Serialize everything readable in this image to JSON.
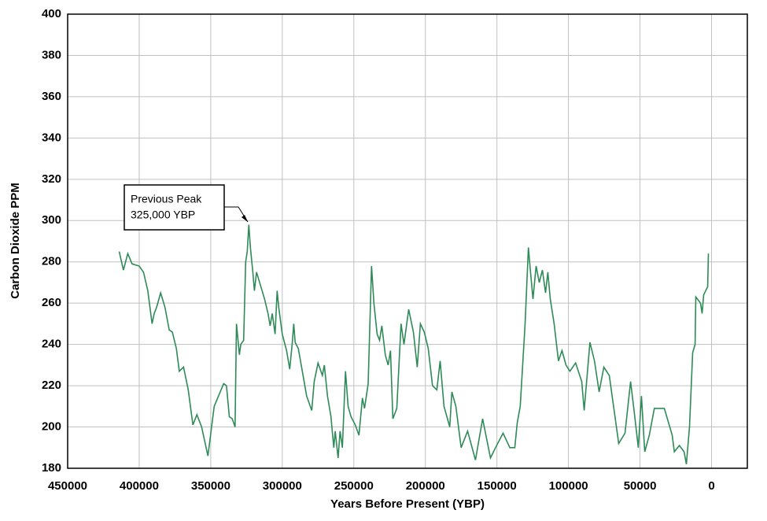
{
  "chart_data": {
    "type": "line",
    "x_label": "Years Before Present (YBP)",
    "y_label": "Carbon Dioxide PPM",
    "annotation": [
      "Previous Peak",
      "325,000 YBP"
    ],
    "xlim": [
      450000,
      -25000
    ],
    "xticks": [
      450000,
      400000,
      350000,
      300000,
      250000,
      200000,
      150000,
      100000,
      50000,
      0
    ],
    "ylim": [
      180,
      400
    ],
    "yticks": [
      180,
      200,
      220,
      240,
      260,
      280,
      300,
      320,
      340,
      360,
      380,
      400
    ],
    "grid": true,
    "series": [
      {
        "name": "CO2",
        "color": "#2e8b57",
        "x": [
          414000,
          411000,
          408000,
          405000,
          400000,
          397000,
          394000,
          391000,
          389500,
          387800,
          385000,
          382000,
          379000,
          376800,
          374000,
          372000,
          369000,
          365700,
          362500,
          359700,
          356400,
          352000,
          347600,
          341000,
          339000,
          337000,
          335000,
          333000,
          332000,
          330000,
          329000,
          327000,
          325600,
          324500,
          323400,
          322300,
          320600,
          319500,
          318000,
          315000,
          312400,
          310000,
          308500,
          307000,
          305000,
          303600,
          302500,
          300000,
          297000,
          294800,
          293000,
          292000,
          291000,
          288800,
          286000,
          283000,
          279400,
          277700,
          275000,
          272000,
          270600,
          268400,
          266000,
          264000,
          263000,
          261000,
          259600,
          258000,
          255800,
          254000,
          252000,
          249000,
          246400,
          244000,
          242500,
          240000,
          237600,
          236000,
          233700,
          232000,
          230400,
          228000,
          226000,
          224400,
          222700,
          220000,
          217000,
          215000,
          211700,
          208400,
          205700,
          203500,
          200800,
          198000,
          195000,
          192000,
          189700,
          187000,
          183000,
          181500,
          178700,
          175000,
          170500,
          165000,
          160000,
          154500,
          151000,
          145700,
          141000,
          137500,
          135800,
          133700,
          130300,
          128000,
          126500,
          124800,
          122600,
          120400,
          118200,
          116000,
          114400,
          112700,
          110000,
          107000,
          104500,
          101700,
          99000,
          95000,
          90700,
          89000,
          85000,
          81800,
          78600,
          75300,
          71500,
          64900,
          60500,
          56600,
          54000,
          51200,
          49000,
          46700,
          43500,
          40000,
          33000,
          27500,
          26000,
          22500,
          19200,
          17600,
          15400,
          13200,
          11500,
          11000,
          7700,
          6600,
          5500,
          2700,
          2200
        ],
        "values": [
          285,
          276,
          284,
          279,
          278,
          275,
          266,
          250,
          255,
          258,
          265,
          258,
          247,
          246,
          238,
          227,
          229,
          218,
          201,
          206,
          200,
          186,
          210,
          221,
          220,
          205,
          204,
          200,
          250,
          235,
          240,
          242,
          280,
          285,
          298,
          287,
          275,
          266,
          275,
          268,
          262,
          255,
          249,
          255,
          245,
          266,
          258,
          245,
          237,
          228,
          241,
          250,
          241,
          238,
          227,
          215,
          208,
          222,
          231,
          225,
          230,
          215,
          205,
          190,
          198,
          185,
          198,
          190,
          227,
          210,
          205,
          201,
          196,
          214,
          209,
          221,
          278,
          260,
          245,
          242,
          249,
          235,
          230,
          237,
          204,
          209,
          250,
          240,
          257,
          246,
          229,
          250,
          246,
          238,
          220,
          218,
          232,
          210,
          200,
          217,
          210,
          190,
          198,
          184,
          204,
          185,
          190,
          197,
          190,
          190,
          202,
          210,
          250,
          287,
          275,
          262,
          278,
          270,
          276,
          265,
          275,
          262,
          250,
          232,
          237,
          230,
          227,
          231,
          222,
          208,
          241,
          232,
          217,
          229,
          225,
          192,
          197,
          222,
          207,
          190,
          215,
          188,
          196,
          209,
          209,
          196,
          188,
          191,
          188,
          182,
          200,
          236,
          240,
          263,
          260,
          255,
          264,
          268,
          284
        ]
      }
    ]
  }
}
